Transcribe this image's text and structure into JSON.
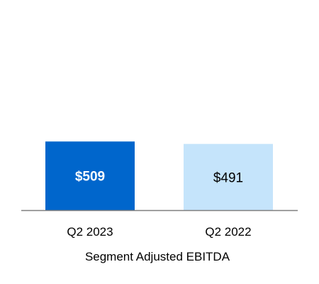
{
  "chart_data": {
    "type": "bar",
    "categories": [
      "Q2 2023",
      "Q2 2022"
    ],
    "values": [
      509,
      491
    ],
    "value_labels": [
      "$509",
      "$491"
    ],
    "xlabel": "Segment Adjusted EBITDA",
    "ylabel": "",
    "ylim": [
      0,
      1400
    ],
    "grid": false,
    "legend": "none",
    "colors": {
      "bars": [
        "#0066cc",
        "#c5e4fb"
      ],
      "value_label_colors": [
        "#ffffff",
        "#000000"
      ],
      "axis": "#7f7f7f"
    }
  }
}
